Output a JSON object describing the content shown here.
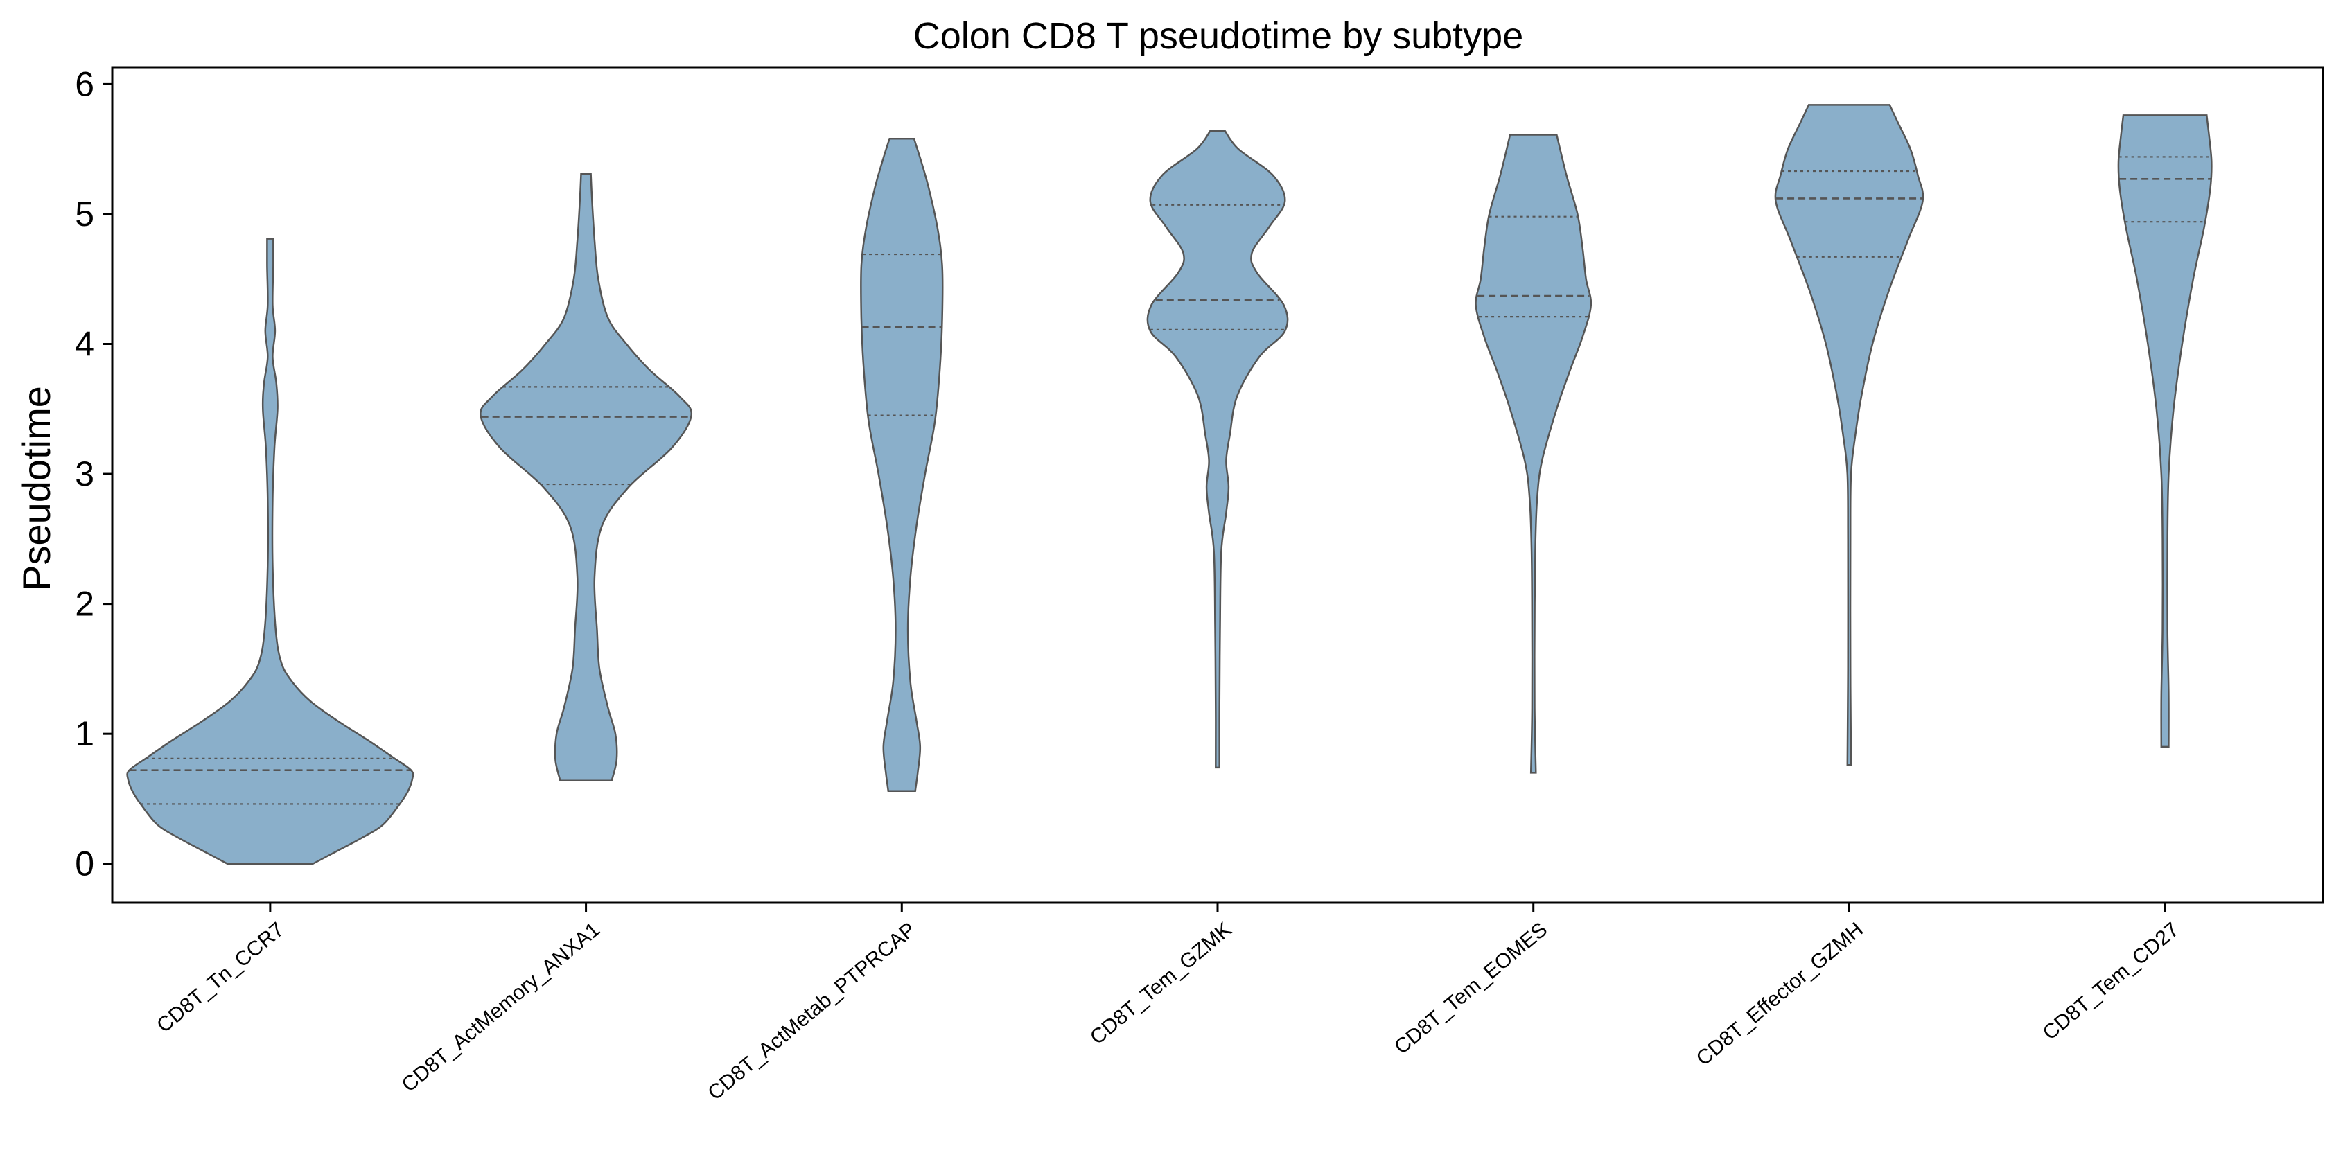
{
  "chart_data": {
    "type": "violin",
    "title": "Colon CD8 T pseudotime by subtype",
    "xlabel": "",
    "ylabel": "Pseudotime",
    "ylim": [
      -0.3,
      6.13
    ],
    "yticks": [
      0,
      1,
      2,
      3,
      4,
      5,
      6
    ],
    "grid": false,
    "legend": "none",
    "color": "#8aafca",
    "edge_color": "#555555",
    "categories": [
      "CD8T_Tn_CCR7",
      "CD8T_ActMemory_ANXA1",
      "CD8T_ActMetab_PTPRCAP",
      "CD8T_Tem_GZMK",
      "CD8T_Tem_EOMES",
      "CD8T_Effector_GZMH",
      "CD8T_Tem_CD27"
    ],
    "violins": [
      {
        "min": 0.0,
        "max": 4.81,
        "q1": 0.46,
        "median": 0.72,
        "q3": 0.81,
        "density": [
          [
            0.0,
            0.35
          ],
          [
            0.1,
            0.55
          ],
          [
            0.2,
            0.75
          ],
          [
            0.3,
            0.92
          ],
          [
            0.45,
            1.05
          ],
          [
            0.55,
            1.12
          ],
          [
            0.65,
            1.16
          ],
          [
            0.72,
            1.15
          ],
          [
            0.82,
            1.0
          ],
          [
            0.95,
            0.8
          ],
          [
            1.1,
            0.55
          ],
          [
            1.25,
            0.33
          ],
          [
            1.4,
            0.18
          ],
          [
            1.55,
            0.09
          ],
          [
            1.8,
            0.045
          ],
          [
            2.3,
            0.02
          ],
          [
            2.8,
            0.02
          ],
          [
            3.2,
            0.035
          ],
          [
            3.5,
            0.06
          ],
          [
            3.7,
            0.05
          ],
          [
            3.9,
            0.02
          ],
          [
            4.1,
            0.04
          ],
          [
            4.3,
            0.02
          ],
          [
            4.6,
            0.025
          ],
          [
            4.81,
            0.025
          ]
        ]
      },
      {
        "min": 0.64,
        "max": 5.31,
        "q1": 2.92,
        "median": 3.44,
        "q3": 3.67,
        "density": [
          [
            0.64,
            0.21
          ],
          [
            0.8,
            0.25
          ],
          [
            1.0,
            0.24
          ],
          [
            1.2,
            0.18
          ],
          [
            1.5,
            0.11
          ],
          [
            1.8,
            0.09
          ],
          [
            2.2,
            0.07
          ],
          [
            2.6,
            0.13
          ],
          [
            2.9,
            0.35
          ],
          [
            3.2,
            0.7
          ],
          [
            3.45,
            0.86
          ],
          [
            3.6,
            0.76
          ],
          [
            3.8,
            0.52
          ],
          [
            4.0,
            0.33
          ],
          [
            4.2,
            0.18
          ],
          [
            4.5,
            0.1
          ],
          [
            4.8,
            0.07
          ],
          [
            5.1,
            0.05
          ],
          [
            5.31,
            0.04
          ]
        ]
      },
      {
        "min": 0.56,
        "max": 5.58,
        "q1": 3.45,
        "median": 4.13,
        "q3": 4.69,
        "density": [
          [
            0.56,
            0.11
          ],
          [
            0.7,
            0.13
          ],
          [
            0.9,
            0.15
          ],
          [
            1.1,
            0.12
          ],
          [
            1.4,
            0.07
          ],
          [
            1.8,
            0.05
          ],
          [
            2.2,
            0.07
          ],
          [
            2.6,
            0.12
          ],
          [
            3.0,
            0.19
          ],
          [
            3.4,
            0.27
          ],
          [
            3.8,
            0.31
          ],
          [
            4.2,
            0.33
          ],
          [
            4.6,
            0.33
          ],
          [
            4.9,
            0.29
          ],
          [
            5.2,
            0.22
          ],
          [
            5.4,
            0.16
          ],
          [
            5.58,
            0.1
          ]
        ]
      },
      {
        "min": 0.74,
        "max": 5.64,
        "q1": 4.11,
        "median": 4.34,
        "q3": 5.07,
        "density": [
          [
            0.74,
            0.015
          ],
          [
            1.2,
            0.015
          ],
          [
            1.8,
            0.02
          ],
          [
            2.4,
            0.03
          ],
          [
            2.7,
            0.07
          ],
          [
            2.9,
            0.09
          ],
          [
            3.1,
            0.07
          ],
          [
            3.3,
            0.1
          ],
          [
            3.6,
            0.16
          ],
          [
            3.9,
            0.34
          ],
          [
            4.1,
            0.55
          ],
          [
            4.3,
            0.54
          ],
          [
            4.55,
            0.32
          ],
          [
            4.7,
            0.28
          ],
          [
            4.9,
            0.42
          ],
          [
            5.1,
            0.55
          ],
          [
            5.3,
            0.45
          ],
          [
            5.5,
            0.17
          ],
          [
            5.64,
            0.06
          ]
        ]
      },
      {
        "min": 0.7,
        "max": 5.61,
        "q1": 4.21,
        "median": 4.37,
        "q3": 4.98,
        "density": [
          [
            0.7,
            0.02
          ],
          [
            1.2,
            0.01
          ],
          [
            1.8,
            0.01
          ],
          [
            2.4,
            0.015
          ],
          [
            2.8,
            0.03
          ],
          [
            3.1,
            0.07
          ],
          [
            3.5,
            0.19
          ],
          [
            3.8,
            0.3
          ],
          [
            4.05,
            0.4
          ],
          [
            4.3,
            0.47
          ],
          [
            4.5,
            0.43
          ],
          [
            4.75,
            0.4
          ],
          [
            5.0,
            0.36
          ],
          [
            5.3,
            0.27
          ],
          [
            5.61,
            0.19
          ]
        ]
      },
      {
        "min": 0.76,
        "max": 5.84,
        "q1": 4.67,
        "median": 5.12,
        "q3": 5.33,
        "density": [
          [
            0.76,
            0.015
          ],
          [
            1.5,
            0.01
          ],
          [
            2.5,
            0.01
          ],
          [
            3.0,
            0.015
          ],
          [
            3.3,
            0.05
          ],
          [
            3.6,
            0.1
          ],
          [
            4.0,
            0.19
          ],
          [
            4.4,
            0.32
          ],
          [
            4.8,
            0.48
          ],
          [
            5.1,
            0.6
          ],
          [
            5.3,
            0.56
          ],
          [
            5.5,
            0.5
          ],
          [
            5.7,
            0.4
          ],
          [
            5.84,
            0.33
          ]
        ]
      },
      {
        "min": 0.9,
        "max": 5.76,
        "q1": 4.94,
        "median": 5.27,
        "q3": 5.44,
        "density": [
          [
            0.9,
            0.03
          ],
          [
            1.3,
            0.03
          ],
          [
            1.8,
            0.02
          ],
          [
            2.5,
            0.02
          ],
          [
            3.0,
            0.03
          ],
          [
            3.5,
            0.07
          ],
          [
            4.0,
            0.14
          ],
          [
            4.5,
            0.23
          ],
          [
            4.9,
            0.32
          ],
          [
            5.2,
            0.37
          ],
          [
            5.4,
            0.38
          ],
          [
            5.6,
            0.36
          ],
          [
            5.76,
            0.34
          ]
        ]
      }
    ]
  }
}
